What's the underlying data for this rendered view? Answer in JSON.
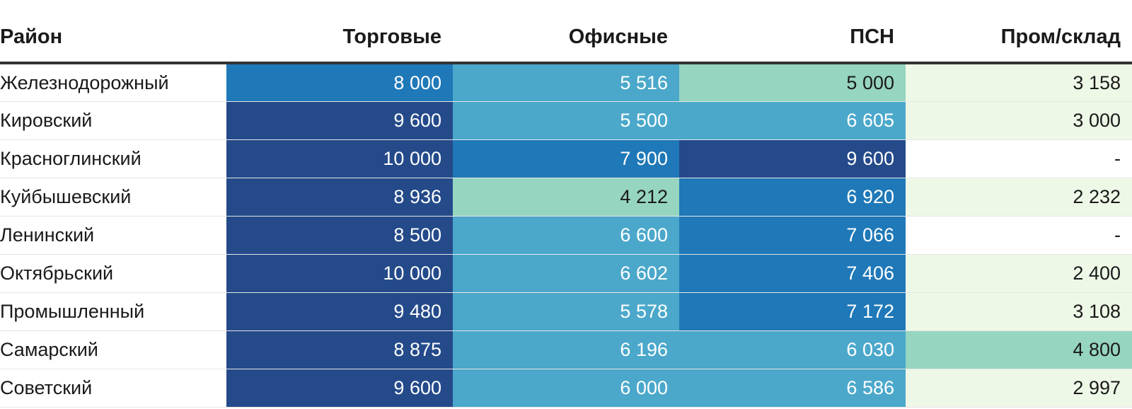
{
  "chart_data": {
    "type": "table",
    "columns": [
      "Район",
      "Торговые",
      "Офисные",
      "ПСН",
      "Пром/склад"
    ],
    "rows": [
      {
        "district": "Железнодорожный",
        "values": [
          "8 000",
          "5 516",
          "5 000",
          "3 158"
        ],
        "numeric": [
          8000,
          5516,
          5000,
          3158
        ],
        "colors": [
          "#1f78b8",
          "#4ba8cb",
          "#96d5c0",
          "#eef8e7"
        ]
      },
      {
        "district": "Кировский",
        "values": [
          "9 600",
          "5 500",
          "6 605",
          "3 000"
        ],
        "numeric": [
          9600,
          5500,
          6605,
          3000
        ],
        "colors": [
          "#244a8a",
          "#4ba8cb",
          "#4ba8cb",
          "#eef8e7"
        ]
      },
      {
        "district": "Красноглинский",
        "values": [
          "10 000",
          "7 900",
          "9 600",
          "-"
        ],
        "numeric": [
          10000,
          7900,
          9600,
          null
        ],
        "colors": [
          "#244a8a",
          "#1f78b8",
          "#244a8a",
          "#ffffff"
        ]
      },
      {
        "district": "Куйбышевский",
        "values": [
          "8 936",
          "4 212",
          "6 920",
          "2 232"
        ],
        "numeric": [
          8936,
          4212,
          6920,
          2232
        ],
        "colors": [
          "#244a8a",
          "#96d5c0",
          "#1f78b8",
          "#eef8e7"
        ]
      },
      {
        "district": "Ленинский",
        "values": [
          "8 500",
          "6 600",
          "7 066",
          "-"
        ],
        "numeric": [
          8500,
          6600,
          7066,
          null
        ],
        "colors": [
          "#244a8a",
          "#4ba8cb",
          "#1f78b8",
          "#ffffff"
        ]
      },
      {
        "district": "Октябрьский",
        "values": [
          "10 000",
          "6 602",
          "7 406",
          "2 400"
        ],
        "numeric": [
          10000,
          6602,
          7406,
          2400
        ],
        "colors": [
          "#244a8a",
          "#4ba8cb",
          "#1f78b8",
          "#eef8e7"
        ]
      },
      {
        "district": "Промышленный",
        "values": [
          "9 480",
          "5 578",
          "7 172",
          "3 108"
        ],
        "numeric": [
          9480,
          5578,
          7172,
          3108
        ],
        "colors": [
          "#244a8a",
          "#4ba8cb",
          "#1f78b8",
          "#eef8e7"
        ]
      },
      {
        "district": "Самарский",
        "values": [
          "8 875",
          "6 196",
          "6 030",
          "4 800"
        ],
        "numeric": [
          8875,
          6196,
          6030,
          4800
        ],
        "colors": [
          "#244a8a",
          "#4ba8cb",
          "#4ba8cb",
          "#96d5c0"
        ]
      },
      {
        "district": "Советский",
        "values": [
          "9 600",
          "6 000",
          "6 586",
          "2 997"
        ],
        "numeric": [
          9600,
          6000,
          6586,
          2997
        ],
        "colors": [
          "#244a8a",
          "#4ba8cb",
          "#4ba8cb",
          "#eef8e7"
        ]
      }
    ]
  },
  "colors": {
    "text_dark": "#1a1a1a",
    "text_light": "#ffffff",
    "header_rule": "#333333",
    "row_rule": "#e6e6e6"
  }
}
